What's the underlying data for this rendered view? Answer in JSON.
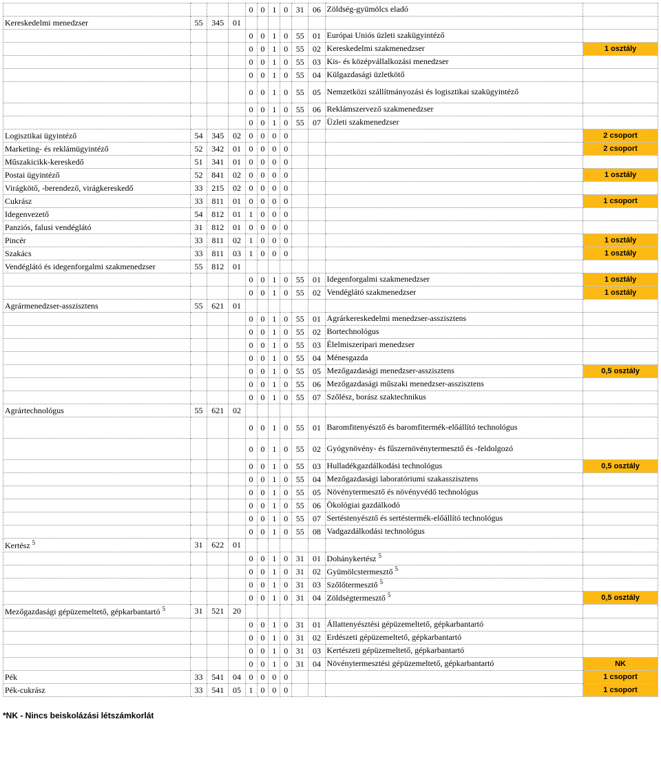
{
  "colors": {
    "highlight": "#fdb913",
    "border": "#888888",
    "bg": "#ffffff",
    "text": "#000000"
  },
  "footer": "*NK - Nincs beiskolázási létszámkorlát",
  "rows": [
    {
      "name": "",
      "codes": [
        "",
        "",
        "",
        "0",
        "0",
        "1",
        "0",
        "31",
        "06"
      ],
      "desc": "Zöldség-gyümölcs eladó",
      "status": "",
      "hl": false
    },
    {
      "name": "Kereskedelmi menedzser",
      "codes": [
        "55",
        "345",
        "01",
        "",
        "",
        "",
        "",
        "",
        ""
      ],
      "desc": "",
      "status": "",
      "hl": false
    },
    {
      "name": "",
      "codes": [
        "",
        "",
        "",
        "0",
        "0",
        "1",
        "0",
        "55",
        "01"
      ],
      "desc": "Európai Uniós üzleti szakügyintéző",
      "status": "",
      "hl": false
    },
    {
      "name": "",
      "codes": [
        "",
        "",
        "",
        "0",
        "0",
        "1",
        "0",
        "55",
        "02"
      ],
      "desc": "Kereskedelmi szakmenedzser",
      "status": "1 osztály",
      "hl": true
    },
    {
      "name": "",
      "codes": [
        "",
        "",
        "",
        "0",
        "0",
        "1",
        "0",
        "55",
        "03"
      ],
      "desc": "Kis- és középvállalkozási menedzser",
      "status": "",
      "hl": false
    },
    {
      "name": "",
      "codes": [
        "",
        "",
        "",
        "0",
        "0",
        "1",
        "0",
        "55",
        "04"
      ],
      "desc": "Külgazdasági üzletkötő",
      "status": "",
      "hl": false
    },
    {
      "name": "",
      "codes": [
        "",
        "",
        "",
        "0",
        "0",
        "1",
        "0",
        "55",
        "05"
      ],
      "desc": "Nemzetközi szállítmányozási és logisztikai szakügyintéző",
      "status": "",
      "hl": false,
      "tall": true
    },
    {
      "name": "",
      "codes": [
        "",
        "",
        "",
        "0",
        "0",
        "1",
        "0",
        "55",
        "06"
      ],
      "desc": "Reklámszervező szakmenedzser",
      "status": "",
      "hl": false
    },
    {
      "name": "",
      "codes": [
        "",
        "",
        "",
        "0",
        "0",
        "1",
        "0",
        "55",
        "07"
      ],
      "desc": "Üzleti szakmenedzser",
      "status": "",
      "hl": false
    },
    {
      "name": "Logisztikai ügyintéző",
      "codes": [
        "54",
        "345",
        "02",
        "0",
        "0",
        "0",
        "0",
        "",
        ""
      ],
      "desc": "",
      "status": "2 csoport",
      "hl": true
    },
    {
      "name": "Marketing- és reklámügyintéző",
      "codes": [
        "52",
        "342",
        "01",
        "0",
        "0",
        "0",
        "0",
        "",
        ""
      ],
      "desc": "",
      "status": "2 csoport",
      "hl": true
    },
    {
      "name": "Műszakicikk-kereskedő",
      "codes": [
        "51",
        "341",
        "01",
        "0",
        "0",
        "0",
        "0",
        "",
        ""
      ],
      "desc": "",
      "status": "",
      "hl": false
    },
    {
      "name": "Postai ügyintéző",
      "codes": [
        "52",
        "841",
        "02",
        "0",
        "0",
        "0",
        "0",
        "",
        ""
      ],
      "desc": "",
      "status": "1 osztály",
      "hl": true
    },
    {
      "name": "Virágkötő, -berendező, virágkereskedő",
      "codes": [
        "33",
        "215",
        "02",
        "0",
        "0",
        "0",
        "0",
        "",
        ""
      ],
      "desc": "",
      "status": "",
      "hl": false
    },
    {
      "name": "Cukrász",
      "codes": [
        "33",
        "811",
        "01",
        "0",
        "0",
        "0",
        "0",
        "",
        ""
      ],
      "desc": "",
      "status": "1 csoport",
      "hl": true
    },
    {
      "name": "Idegenvezető",
      "codes": [
        "54",
        "812",
        "01",
        "1",
        "0",
        "0",
        "0",
        "",
        ""
      ],
      "desc": "",
      "status": "",
      "hl": false
    },
    {
      "name": "Panziós, falusi vendéglátó",
      "codes": [
        "31",
        "812",
        "01",
        "0",
        "0",
        "0",
        "0",
        "",
        ""
      ],
      "desc": "",
      "status": "",
      "hl": false
    },
    {
      "name": "Pincér",
      "codes": [
        "33",
        "811",
        "02",
        "1",
        "0",
        "0",
        "0",
        "",
        ""
      ],
      "desc": "",
      "status": "1 osztály",
      "hl": true
    },
    {
      "name": "Szakács",
      "codes": [
        "33",
        "811",
        "03",
        "1",
        "0",
        "0",
        "0",
        "",
        ""
      ],
      "desc": "",
      "status": "1 osztály",
      "hl": true
    },
    {
      "name": "Vendéglátó és idegenforgalmi szakmenedzser",
      "codes": [
        "55",
        "812",
        "01",
        "",
        "",
        "",
        "",
        "",
        ""
      ],
      "desc": "",
      "status": "",
      "hl": false
    },
    {
      "name": "",
      "codes": [
        "",
        "",
        "",
        "0",
        "0",
        "1",
        "0",
        "55",
        "01"
      ],
      "desc": "Idegenforgalmi szakmenedzser",
      "status": "1 osztály",
      "hl": true
    },
    {
      "name": "",
      "codes": [
        "",
        "",
        "",
        "0",
        "0",
        "1",
        "0",
        "55",
        "02"
      ],
      "desc": "Vendéglátó szakmenedzser",
      "status": "1 osztály",
      "hl": true
    },
    {
      "name": "Agrármenedzser-asszisztens",
      "codes": [
        "55",
        "621",
        "01",
        "",
        "",
        "",
        "",
        "",
        ""
      ],
      "desc": "",
      "status": "",
      "hl": false
    },
    {
      "name": "",
      "codes": [
        "",
        "",
        "",
        "0",
        "0",
        "1",
        "0",
        "55",
        "01"
      ],
      "desc": "Agrárkereskedelmi menedzser-asszisztens",
      "status": "",
      "hl": false
    },
    {
      "name": "",
      "codes": [
        "",
        "",
        "",
        "0",
        "0",
        "1",
        "0",
        "55",
        "02"
      ],
      "desc": "Bortechnológus",
      "status": "",
      "hl": false
    },
    {
      "name": "",
      "codes": [
        "",
        "",
        "",
        "0",
        "0",
        "1",
        "0",
        "55",
        "03"
      ],
      "desc": "Élelmiszeripari menedzser",
      "status": "",
      "hl": false
    },
    {
      "name": "",
      "codes": [
        "",
        "",
        "",
        "0",
        "0",
        "1",
        "0",
        "55",
        "04"
      ],
      "desc": "Ménesgazda",
      "status": "",
      "hl": false
    },
    {
      "name": "",
      "codes": [
        "",
        "",
        "",
        "0",
        "0",
        "1",
        "0",
        "55",
        "05"
      ],
      "desc": "Mezőgazdasági menedzser-asszisztens",
      "status": "0,5 osztály",
      "hl": true
    },
    {
      "name": "",
      "codes": [
        "",
        "",
        "",
        "0",
        "0",
        "1",
        "0",
        "55",
        "06"
      ],
      "desc": "Mezőgazdasági műszaki menedzser-asszisztens",
      "status": "",
      "hl": false
    },
    {
      "name": "",
      "codes": [
        "",
        "",
        "",
        "0",
        "0",
        "1",
        "0",
        "55",
        "07"
      ],
      "desc": "Szőlész, borász szaktechnikus",
      "status": "",
      "hl": false
    },
    {
      "name": "Agrártechnológus",
      "codes": [
        "55",
        "621",
        "02",
        "",
        "",
        "",
        "",
        "",
        ""
      ],
      "desc": "",
      "status": "",
      "hl": false
    },
    {
      "name": "",
      "codes": [
        "",
        "",
        "",
        "0",
        "0",
        "1",
        "0",
        "55",
        "01"
      ],
      "desc": "Baromfitenyésztő és baromfitermék-előállító technológus",
      "status": "",
      "hl": false,
      "tall": true
    },
    {
      "name": "",
      "codes": [
        "",
        "",
        "",
        "0",
        "0",
        "1",
        "0",
        "55",
        "02"
      ],
      "desc": "Gyógynövény- és fűszernövénytermesztő és -feldolgozó",
      "status": "",
      "hl": false,
      "tall": true
    },
    {
      "name": "",
      "codes": [
        "",
        "",
        "",
        "0",
        "0",
        "1",
        "0",
        "55",
        "03"
      ],
      "desc": "Hulladékgazdálkodási technológus",
      "status": "0,5 osztály",
      "hl": true
    },
    {
      "name": "",
      "codes": [
        "",
        "",
        "",
        "0",
        "0",
        "1",
        "0",
        "55",
        "04"
      ],
      "desc": "Mezőgazdasági laboratóriumi szakasszisztens",
      "status": "",
      "hl": false
    },
    {
      "name": "",
      "codes": [
        "",
        "",
        "",
        "0",
        "0",
        "1",
        "0",
        "55",
        "05"
      ],
      "desc": "Növénytermesztő és növényvédő technológus",
      "status": "",
      "hl": false
    },
    {
      "name": "",
      "codes": [
        "",
        "",
        "",
        "0",
        "0",
        "1",
        "0",
        "55",
        "06"
      ],
      "desc": "Ökológiai gazdálkodó",
      "status": "",
      "hl": false
    },
    {
      "name": "",
      "codes": [
        "",
        "",
        "",
        "0",
        "0",
        "1",
        "0",
        "55",
        "07"
      ],
      "desc": "Sertéstenyésztő és sertéstermék-előállító technológus",
      "status": "",
      "hl": false
    },
    {
      "name": "",
      "codes": [
        "",
        "",
        "",
        "0",
        "0",
        "1",
        "0",
        "55",
        "08"
      ],
      "desc": "Vadgazdálkodási technológus",
      "status": "",
      "hl": false
    },
    {
      "name": "Kertész <sup>5</sup>",
      "codes": [
        "31",
        "622",
        "01",
        "",
        "",
        "",
        "",
        "",
        ""
      ],
      "desc": "",
      "status": "",
      "hl": false,
      "html": true
    },
    {
      "name": "",
      "codes": [
        "",
        "",
        "",
        "0",
        "0",
        "1",
        "0",
        "31",
        "01"
      ],
      "desc": "Dohánykertész <sup>5</sup>",
      "status": "",
      "hl": false,
      "html": true
    },
    {
      "name": "",
      "codes": [
        "",
        "",
        "",
        "0",
        "0",
        "1",
        "0",
        "31",
        "02"
      ],
      "desc": "Gyümölcstermesztő <sup>5</sup>",
      "status": "",
      "hl": false,
      "html": true
    },
    {
      "name": "",
      "codes": [
        "",
        "",
        "",
        "0",
        "0",
        "1",
        "0",
        "31",
        "03"
      ],
      "desc": "Szőlőtermesztő <sup>5</sup>",
      "status": "",
      "hl": false,
      "html": true
    },
    {
      "name": "",
      "codes": [
        "",
        "",
        "",
        "0",
        "0",
        "1",
        "0",
        "31",
        "04"
      ],
      "desc": "Zöldségtermesztő <sup>5</sup>",
      "status": "0,5 osztály",
      "hl": true,
      "html": true
    },
    {
      "name": "Mezőgazdasági gépüzemeltető, gépkarbantartó <sup>5</sup>",
      "codes": [
        "31",
        "521",
        "20",
        "",
        "",
        "",
        "",
        "",
        ""
      ],
      "desc": "",
      "status": "",
      "hl": false,
      "html": true
    },
    {
      "name": "",
      "codes": [
        "",
        "",
        "",
        "0",
        "0",
        "1",
        "0",
        "31",
        "01"
      ],
      "desc": "Állattenyésztési gépüzemeltető, gépkarbantartó",
      "status": "",
      "hl": false
    },
    {
      "name": "",
      "codes": [
        "",
        "",
        "",
        "0",
        "0",
        "1",
        "0",
        "31",
        "02"
      ],
      "desc": "Erdészeti gépüzemeltető, gépkarbantartó",
      "status": "",
      "hl": false
    },
    {
      "name": "",
      "codes": [
        "",
        "",
        "",
        "0",
        "0",
        "1",
        "0",
        "31",
        "03"
      ],
      "desc": "Kertészeti gépüzemeltető, gépkarbantartó",
      "status": "",
      "hl": false
    },
    {
      "name": "",
      "codes": [
        "",
        "",
        "",
        "0",
        "0",
        "1",
        "0",
        "31",
        "04"
      ],
      "desc": "Növénytermesztési gépüzemeltető, gépkarbantartó",
      "status": "NK",
      "hl": true
    },
    {
      "name": "Pék",
      "codes": [
        "33",
        "541",
        "04",
        "0",
        "0",
        "0",
        "0",
        "",
        ""
      ],
      "desc": "",
      "status": "1 csoport",
      "hl": true
    },
    {
      "name": "Pék-cukrász",
      "codes": [
        "33",
        "541",
        "05",
        "1",
        "0",
        "0",
        "0",
        "",
        ""
      ],
      "desc": "",
      "status": "1 csoport",
      "hl": true
    }
  ]
}
